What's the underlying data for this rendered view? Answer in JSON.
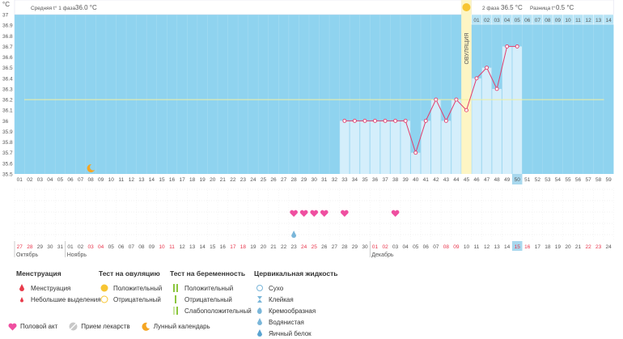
{
  "header": {
    "unit": "°C",
    "phase1_label": "Средняя t° 1 фаза",
    "phase1_value": "36.0 °C",
    "phase2_label": "2 фаза",
    "phase2_value": "36.5 °C",
    "diff_label": "Разница t°",
    "diff_value": "0.5 °C",
    "ovulation_label": "ОВУЛЯЦИЯ"
  },
  "colors": {
    "sky": "#8fd3ef",
    "bar": "#d4eefb",
    "line": "#e23c6b",
    "ovulation": "#fdf5c4",
    "coverline": "#f0f0a0",
    "highlight": "#a8d8ee"
  },
  "chart_data": {
    "type": "line",
    "ylabel": "°C",
    "ylim": [
      35.5,
      37.0
    ],
    "yticks": [
      "37",
      "36.9",
      "36.8",
      "36.7",
      "36.6",
      "36.5",
      "36.4",
      "36.3",
      "36.2",
      "36.1",
      "36",
      "35.9",
      "35.8",
      "35.7",
      "35.6",
      "35.5"
    ],
    "coverline": 36.2,
    "cycle_days": [
      "01",
      "02",
      "03",
      "04",
      "05",
      "06",
      "07",
      "08",
      "09",
      "10",
      "11",
      "12",
      "13",
      "14",
      "15",
      "16",
      "17",
      "18",
      "19",
      "20",
      "21",
      "22",
      "23",
      "24",
      "25",
      "26",
      "27",
      "28",
      "29",
      "30",
      "31",
      "32",
      "33",
      "34",
      "35",
      "36",
      "37",
      "38",
      "39",
      "40",
      "41",
      "42",
      "43",
      "44",
      "45",
      "46",
      "47",
      "48",
      "49",
      "50",
      "51",
      "52",
      "53",
      "54",
      "55",
      "56",
      "57",
      "58",
      "59"
    ],
    "temperatures": [
      null,
      null,
      null,
      null,
      null,
      null,
      null,
      null,
      null,
      null,
      null,
      null,
      null,
      null,
      null,
      null,
      null,
      null,
      null,
      null,
      null,
      null,
      null,
      null,
      null,
      null,
      null,
      null,
      null,
      null,
      null,
      null,
      36.0,
      36.0,
      36.0,
      36.0,
      36.0,
      36.0,
      36.0,
      35.7,
      36.0,
      36.2,
      36.0,
      36.2,
      36.1,
      36.4,
      36.5,
      36.3,
      36.7,
      36.7,
      null,
      null,
      null,
      null,
      null,
      null,
      null,
      null,
      null
    ],
    "ovulation_day": 45,
    "current_day": 50,
    "phase2_day_labels": [
      "01",
      "02",
      "03",
      "04",
      "05",
      "06",
      "07",
      "08",
      "09",
      "10",
      "11",
      "12",
      "13",
      "14"
    ],
    "dates": [
      "27",
      "28",
      "29",
      "30",
      "31",
      "01",
      "02",
      "03",
      "04",
      "05",
      "06",
      "07",
      "08",
      "09",
      "10",
      "11",
      "12",
      "13",
      "14",
      "15",
      "16",
      "17",
      "18",
      "19",
      "20",
      "21",
      "22",
      "23",
      "24",
      "25",
      "26",
      "27",
      "28",
      "29",
      "30",
      "01",
      "02",
      "03",
      "04",
      "05",
      "06",
      "07",
      "08",
      "09",
      "10",
      "11",
      "12",
      "13",
      "14",
      "15",
      "16",
      "17",
      "18",
      "19",
      "20",
      "21",
      "22",
      "23",
      "24"
    ],
    "weekend_dates": [
      1,
      2,
      8,
      9,
      15,
      16,
      22,
      23,
      29,
      30,
      36,
      37,
      43,
      44,
      50,
      51,
      57,
      58
    ],
    "months": [
      {
        "label": "Октябрь",
        "day": 1
      },
      {
        "label": "Ноябрь",
        "day": 6
      },
      {
        "label": "Декабрь",
        "day": 36
      }
    ],
    "moon_days": [
      8
    ],
    "heart_days": [
      28,
      29,
      30,
      31,
      33,
      38
    ],
    "drop_days": [
      28
    ]
  },
  "legend": {
    "menstruation": {
      "title": "Менструация",
      "items": [
        "Менструация",
        "Небольшие выделения"
      ]
    },
    "ovulation_test": {
      "title": "Тест на овуляцию",
      "items": [
        "Положительный",
        "Отрицательный"
      ]
    },
    "pregnancy_test": {
      "title": "Тест на беременность",
      "items": [
        "Положительный",
        "Отрицательный",
        "Слабоположительный"
      ]
    },
    "cervical": {
      "title": "Цервикальная жидкость",
      "items": [
        "Сухо",
        "Клейкая",
        "Кремообразная",
        "Водянистая",
        "Яичный белок"
      ]
    },
    "bottom": [
      "Половой акт",
      "Прием лекарств",
      "Лунный календарь"
    ]
  }
}
